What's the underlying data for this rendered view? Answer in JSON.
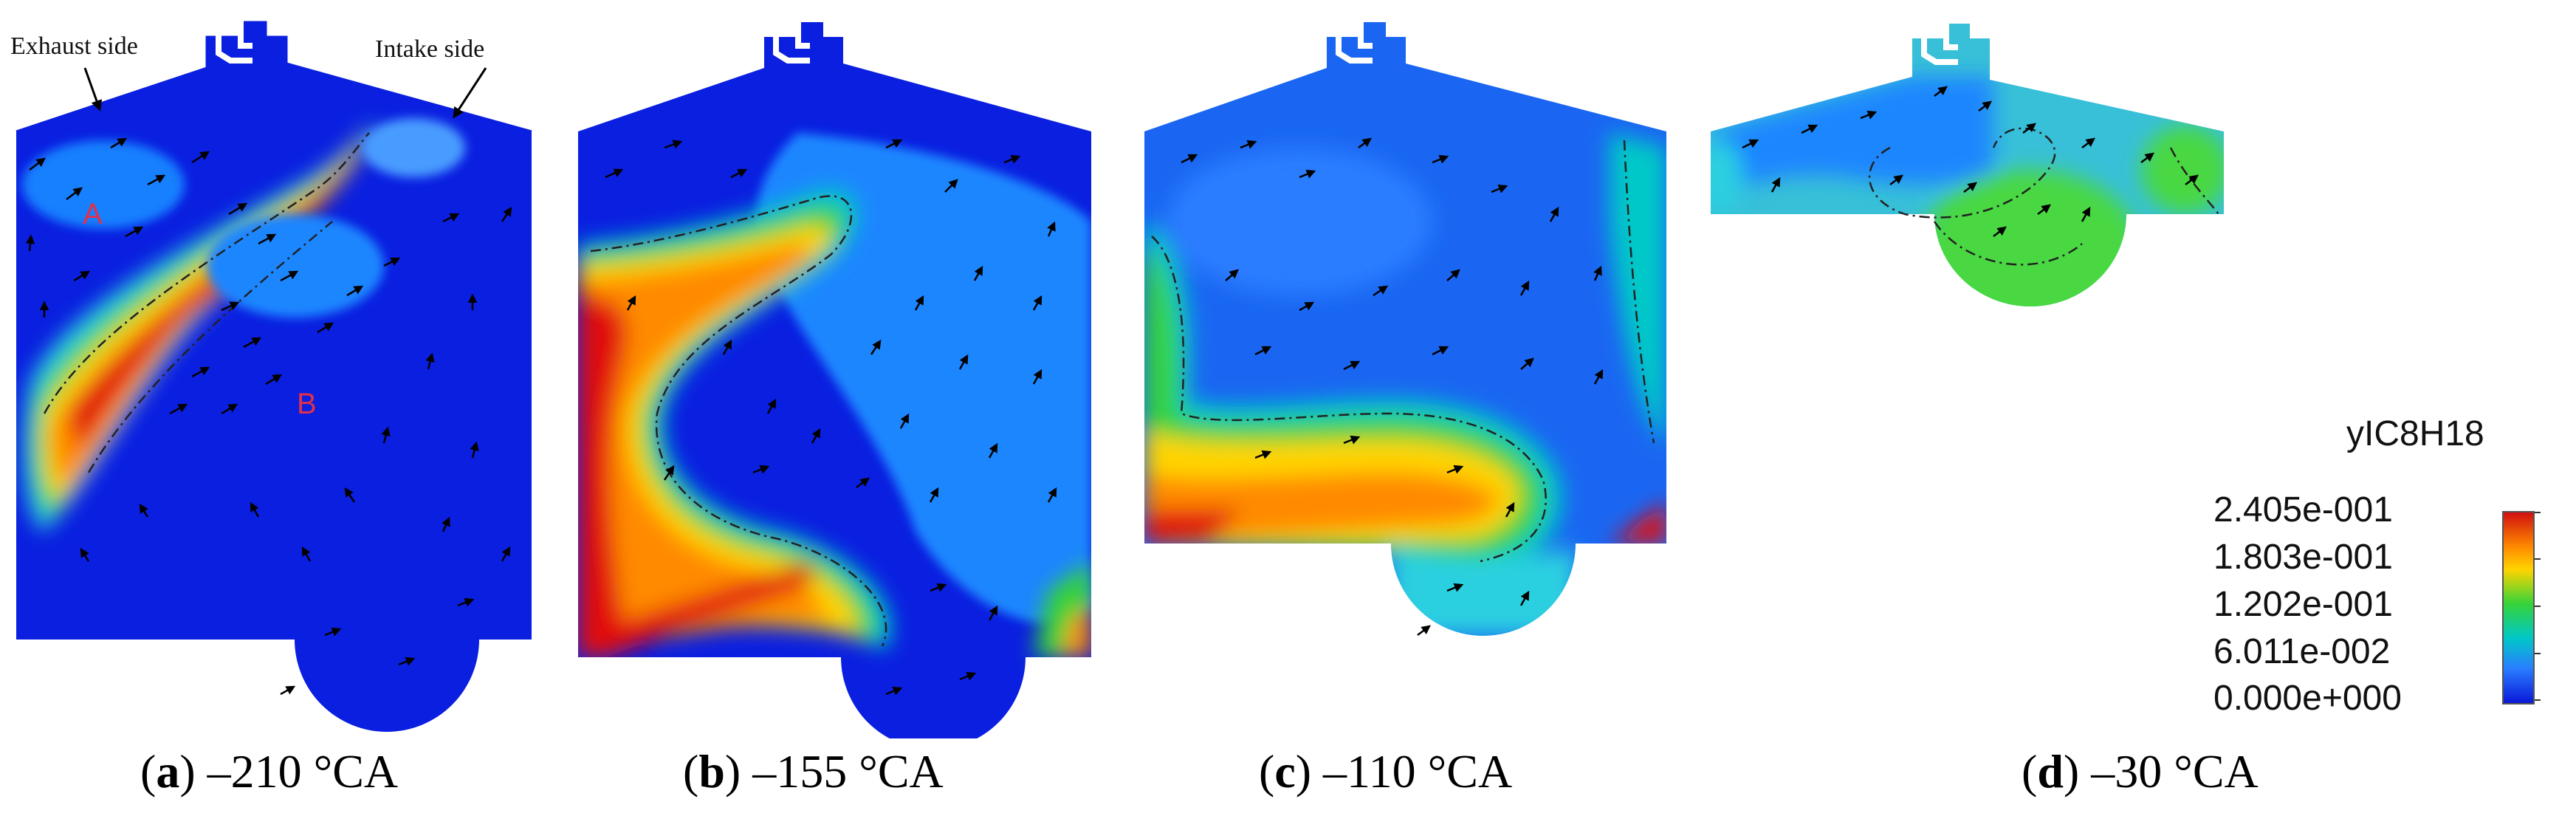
{
  "figure": {
    "panels": [
      {
        "letter": "a",
        "angle": "–210 °CA"
      },
      {
        "letter": "b",
        "angle": "–155 °CA"
      },
      {
        "letter": "c",
        "angle": "–110 °CA"
      },
      {
        "letter": "d",
        "angle": "–30 °CA"
      }
    ],
    "annotations": {
      "exhaust": "Exhaust side",
      "intake": "Intake side",
      "zone_a": "A",
      "zone_b": "B"
    },
    "colorbar": {
      "title": "yIC8H18",
      "ticks": [
        "2.405e-001",
        "1.803e-001",
        "1.202e-001",
        "6.011e-002",
        "0.000e+000"
      ],
      "colors": {
        "high": "#d01010",
        "upper": "#ffd400",
        "mid": "#35d33a",
        "lower": "#00c8c8",
        "low": "#0a18d8"
      }
    }
  }
}
